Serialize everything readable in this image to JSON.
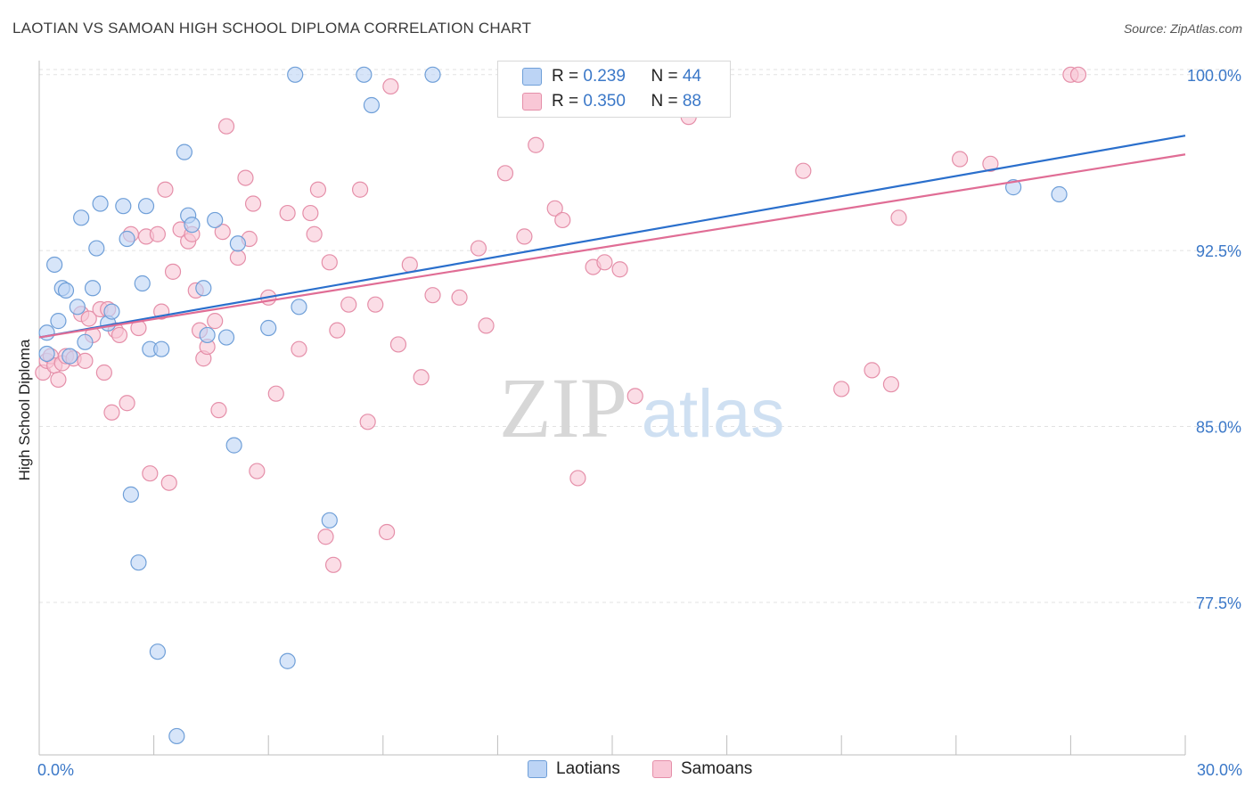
{
  "title": "LAOTIAN VS SAMOAN HIGH SCHOOL DIPLOMA CORRELATION CHART",
  "source": "Source: ZipAtlas.com",
  "watermark": {
    "zip": "ZIP",
    "atlas": "atlas"
  },
  "colors": {
    "laotian_fill": "#bcd4f5",
    "laotian_stroke": "#6f9fd8",
    "laotian_line": "#2a6fcc",
    "samoan_fill": "#f9c7d6",
    "samoan_stroke": "#e58fa9",
    "samoan_line": "#e06d95",
    "tick_label": "#3b78c8"
  },
  "legend_top": {
    "laotian": {
      "r_label": "R = ",
      "r_value": "0.239",
      "n_label": "N = ",
      "n_value": "44"
    },
    "samoan": {
      "r_label": "R = ",
      "r_value": "0.350",
      "n_label": "N = ",
      "n_value": "88"
    }
  },
  "legend_bottom": {
    "laotian": "Laotians",
    "samoan": "Samoans"
  },
  "chart_data": {
    "type": "scatter",
    "title": "LAOTIAN VS SAMOAN HIGH SCHOOL DIPLOMA CORRELATION CHART",
    "xlabel": "",
    "ylabel": "High School Diploma",
    "xlim": [
      0,
      30
    ],
    "ylim": [
      71,
      100.6
    ],
    "x_tick_labels": [
      {
        "value": 0,
        "label": "0.0%"
      },
      {
        "value": 30,
        "label": "30.0%"
      }
    ],
    "y_tick_labels": [
      {
        "value": 100,
        "label": "100.0%"
      },
      {
        "value": 92.5,
        "label": "92.5%"
      },
      {
        "value": 85,
        "label": "85.0%"
      },
      {
        "value": 77.5,
        "label": "77.5%"
      }
    ],
    "series": [
      {
        "name": "Laotians",
        "r": 0.239,
        "n": 44,
        "trend": {
          "x": [
            0.0,
            30.0
          ],
          "y": [
            88.8,
            97.4
          ]
        },
        "points": [
          [
            0.2,
            89.0
          ],
          [
            0.2,
            88.1
          ],
          [
            0.4,
            91.9
          ],
          [
            0.5,
            89.5
          ],
          [
            0.6,
            90.9
          ],
          [
            0.7,
            90.8
          ],
          [
            0.8,
            88.0
          ],
          [
            1.0,
            90.1
          ],
          [
            1.1,
            93.9
          ],
          [
            1.2,
            88.6
          ],
          [
            1.4,
            90.9
          ],
          [
            1.5,
            92.6
          ],
          [
            1.6,
            94.5
          ],
          [
            1.8,
            89.4
          ],
          [
            1.9,
            89.9
          ],
          [
            2.2,
            94.4
          ],
          [
            2.3,
            93.0
          ],
          [
            2.4,
            82.1
          ],
          [
            2.6,
            79.2
          ],
          [
            2.7,
            91.1
          ],
          [
            2.8,
            94.4
          ],
          [
            2.9,
            88.3
          ],
          [
            3.1,
            75.4
          ],
          [
            3.2,
            88.3
          ],
          [
            3.6,
            71.8
          ],
          [
            3.8,
            96.7
          ],
          [
            3.9,
            94.0
          ],
          [
            4.0,
            93.6
          ],
          [
            4.3,
            90.9
          ],
          [
            4.4,
            88.9
          ],
          [
            4.6,
            93.8
          ],
          [
            4.9,
            88.8
          ],
          [
            5.1,
            84.2
          ],
          [
            5.2,
            92.8
          ],
          [
            6.0,
            89.2
          ],
          [
            6.5,
            75.0
          ],
          [
            6.7,
            100.0
          ],
          [
            6.8,
            90.1
          ],
          [
            7.6,
            81.0
          ],
          [
            8.5,
            100.0
          ],
          [
            8.7,
            98.7
          ],
          [
            10.3,
            100.0
          ],
          [
            25.5,
            95.2
          ],
          [
            26.7,
            94.9
          ]
        ]
      },
      {
        "name": "Samoans",
        "r": 0.35,
        "n": 88,
        "trend": {
          "x": [
            0.0,
            30.0
          ],
          "y": [
            88.8,
            96.6
          ]
        },
        "points": [
          [
            0.1,
            87.3
          ],
          [
            0.2,
            87.8
          ],
          [
            0.3,
            88.0
          ],
          [
            0.4,
            87.6
          ],
          [
            0.5,
            87.0
          ],
          [
            0.6,
            87.7
          ],
          [
            0.7,
            88.0
          ],
          [
            0.9,
            87.9
          ],
          [
            1.1,
            89.8
          ],
          [
            1.2,
            87.8
          ],
          [
            1.3,
            89.6
          ],
          [
            1.4,
            88.9
          ],
          [
            1.6,
            90.0
          ],
          [
            1.7,
            87.3
          ],
          [
            1.8,
            90.0
          ],
          [
            1.9,
            85.6
          ],
          [
            2.0,
            89.1
          ],
          [
            2.1,
            88.9
          ],
          [
            2.3,
            86.0
          ],
          [
            2.4,
            93.2
          ],
          [
            2.6,
            89.2
          ],
          [
            2.8,
            93.1
          ],
          [
            2.9,
            83.0
          ],
          [
            3.1,
            93.2
          ],
          [
            3.2,
            89.9
          ],
          [
            3.3,
            95.1
          ],
          [
            3.4,
            82.6
          ],
          [
            3.5,
            91.6
          ],
          [
            3.7,
            93.4
          ],
          [
            3.9,
            92.9
          ],
          [
            4.0,
            93.2
          ],
          [
            4.1,
            90.8
          ],
          [
            4.2,
            89.1
          ],
          [
            4.3,
            87.9
          ],
          [
            4.4,
            88.4
          ],
          [
            4.6,
            89.5
          ],
          [
            4.7,
            85.7
          ],
          [
            4.8,
            93.3
          ],
          [
            4.9,
            97.8
          ],
          [
            5.2,
            92.2
          ],
          [
            5.4,
            95.6
          ],
          [
            5.5,
            93.0
          ],
          [
            5.6,
            94.5
          ],
          [
            5.7,
            83.1
          ],
          [
            6.0,
            90.5
          ],
          [
            6.2,
            86.4
          ],
          [
            6.5,
            94.1
          ],
          [
            6.8,
            88.3
          ],
          [
            7.1,
            94.1
          ],
          [
            7.2,
            93.2
          ],
          [
            7.3,
            95.1
          ],
          [
            7.5,
            80.3
          ],
          [
            7.6,
            92.0
          ],
          [
            7.7,
            79.1
          ],
          [
            7.8,
            89.1
          ],
          [
            8.1,
            90.2
          ],
          [
            8.4,
            95.1
          ],
          [
            8.6,
            85.2
          ],
          [
            8.8,
            90.2
          ],
          [
            9.1,
            80.5
          ],
          [
            9.2,
            99.5
          ],
          [
            9.4,
            88.5
          ],
          [
            9.7,
            91.9
          ],
          [
            10.0,
            87.1
          ],
          [
            10.3,
            90.6
          ],
          [
            11.0,
            90.5
          ],
          [
            11.5,
            92.6
          ],
          [
            11.7,
            89.3
          ],
          [
            12.2,
            95.8
          ],
          [
            12.7,
            93.1
          ],
          [
            13.0,
            97.0
          ],
          [
            13.5,
            94.3
          ],
          [
            13.7,
            93.8
          ],
          [
            14.1,
            82.8
          ],
          [
            14.5,
            91.8
          ],
          [
            14.8,
            92.0
          ],
          [
            15.2,
            91.7
          ],
          [
            15.6,
            86.3
          ],
          [
            17.0,
            98.2
          ],
          [
            20.0,
            95.9
          ],
          [
            21.0,
            86.6
          ],
          [
            21.8,
            87.4
          ],
          [
            22.3,
            86.8
          ],
          [
            22.5,
            93.9
          ],
          [
            24.1,
            96.4
          ],
          [
            24.9,
            96.2
          ],
          [
            27.0,
            100.0
          ],
          [
            27.2,
            100.0
          ]
        ]
      }
    ]
  }
}
